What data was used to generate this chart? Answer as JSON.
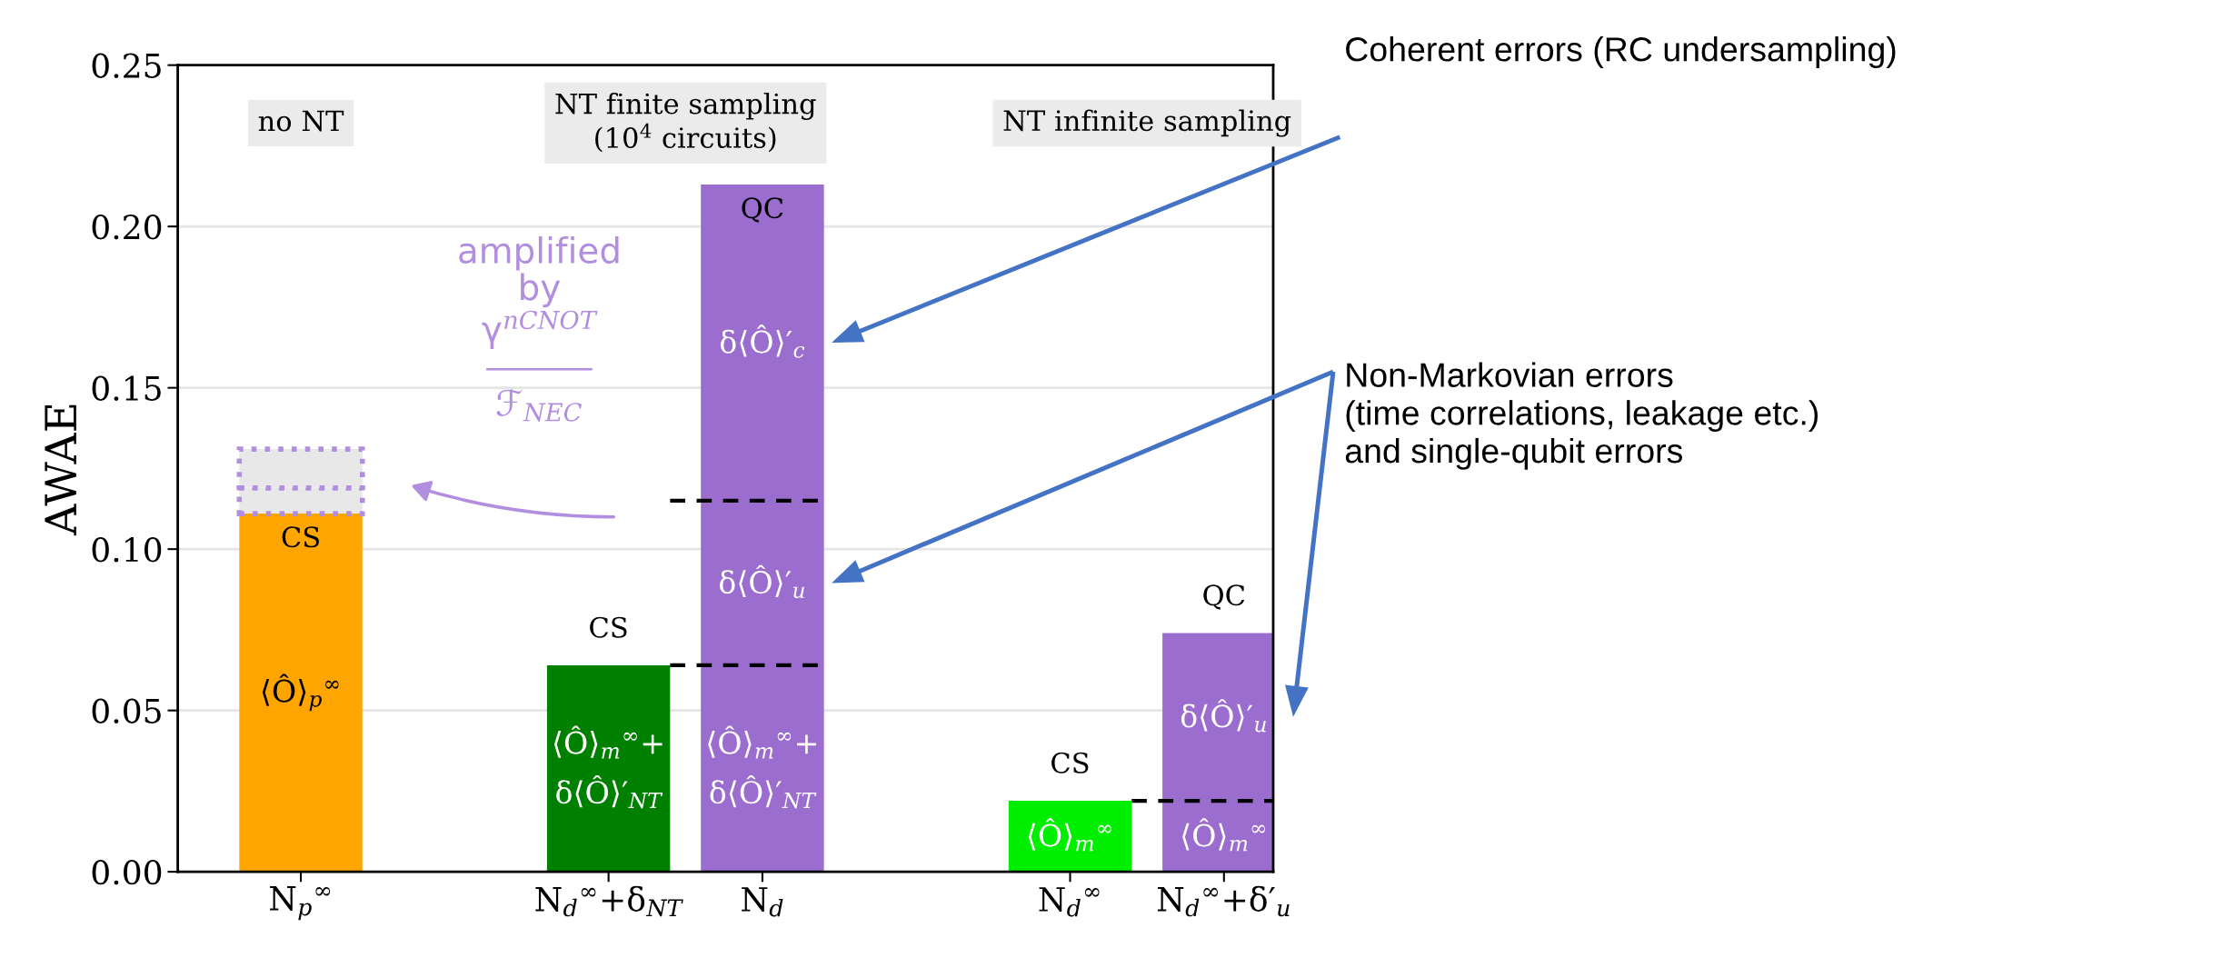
{
  "chart_data": {
    "type": "bar",
    "stacked": true,
    "ylabel": "AWAE",
    "categories": [
      "N$_{p}$$^{∞}$",
      null,
      "N$_{d}$$^{∞}$+δ$_{NT}$",
      "N$_{d}$",
      null,
      "N$_{d}$$^{∞}$",
      "N$_{d}$$^{∞}$+δ′$_{u}$"
    ],
    "series": [
      {
        "values": [
          0.111,
          null,
          0.064,
          0.064,
          null,
          0.022,
          0.022
        ],
        "colors": [
          "#ffa500",
          null,
          "#008000",
          "#9b6dce",
          null,
          "#00ee00",
          "#9b6dce"
        ],
        "value_labels": [
          "⟨Ô⟩$_{p}$$^{∞}$",
          null,
          "⟨Ô⟩$_{m}$$^{∞}$+\nδ⟨Ô⟩′$_{NT}$",
          "⟨Ô⟩$_{m}$$^{∞}$+\nδ⟨Ô⟩′$_{NT}$",
          null,
          "⟨Ô⟩$_{m}$$^{∞}$",
          "⟨Ô⟩$_{m}$$^{∞}$"
        ]
      },
      {
        "values": [
          null,
          null,
          null,
          0.051,
          null,
          null,
          0.052
        ],
        "colors": [
          null,
          null,
          null,
          "#9b6dce",
          null,
          null,
          "#9b6dce"
        ],
        "value_labels": [
          null,
          null,
          null,
          "δ⟨Ô⟩′$_{u}$",
          null,
          null,
          "δ⟨Ô⟩′$_{u}$"
        ]
      },
      {
        "values": [
          null,
          null,
          null,
          0.098,
          null,
          null,
          null
        ],
        "colors": [
          null,
          null,
          null,
          "#9b6dce",
          null,
          null,
          null
        ],
        "value_labels": [
          null,
          null,
          null,
          "δ⟨Ô⟩′$_{c}$",
          null,
          null,
          null
        ]
      },
      {
        "values": [
          0.008,
          null,
          null,
          null,
          null,
          null,
          null
        ],
        "color": "#b28ee0",
        "colors": [
          "#e8e8e8",
          null,
          null,
          null,
          null,
          null,
          null
        ],
        "line_style": "dotted"
      },
      {
        "values": [
          0.012,
          null,
          null,
          null,
          null,
          null,
          null
        ],
        "color": "#b28ee0",
        "colors": [
          "#e8e8e8",
          null,
          null,
          null,
          null,
          null,
          null
        ],
        "line_style": "dotted"
      }
    ],
    "totals": [
      "CS",
      null,
      "CS",
      "QC",
      null,
      "CS",
      "QC"
    ],
    "ylim": [
      0,
      0.25
    ],
    "yticks": [
      {
        "value": 0,
        "label": "0.00"
      },
      0.05,
      {
        "value": 0.1,
        "label": "0.10"
      },
      0.15,
      {
        "value": 0.2,
        "label": "0.20"
      },
      0.25
    ],
    "grid": "y",
    "legend": false,
    "annotations": [
      "no NT",
      "NT finite sampling\n(10$^{4}$ circuits)",
      "NT infinite sampling",
      "amplified\nby\nγ$^{nCNOT}$\n―――\nℱ$_{NEC}$",
      "Coherent errors (RC undersampling)",
      "Non-Markovian errors\n(time correlations, leakage etc.)\nand single-qubit errors"
    ]
  }
}
